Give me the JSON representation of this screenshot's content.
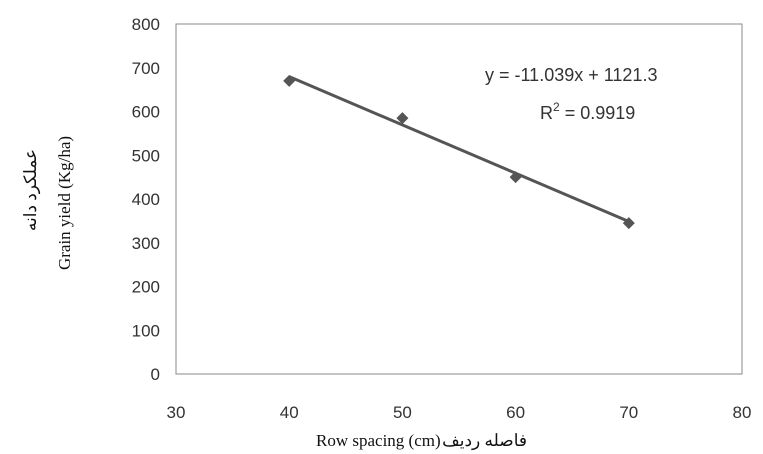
{
  "chart_data": {
    "type": "scatter",
    "series": [
      {
        "x": [
          40,
          50,
          60,
          70
        ],
        "y": [
          670,
          585,
          450,
          345
        ]
      }
    ],
    "trendline": {
      "slope": -11.039,
      "intercept": 1121.3
    },
    "equation": "y = -11.039x + 1121.3",
    "r_squared_prefix": "R",
    "r_squared_exponent": "2",
    "r_squared_value": " = 0.9919",
    "xlabel_fa": "فاصله ردیف",
    "xlabel_en": "Row spacing (cm)",
    "ylabel_en": "Grain yield (Kg/ha)",
    "ylabel_fa": "عملکرد دانه",
    "xlim": [
      30,
      80
    ],
    "ylim": [
      0,
      800
    ],
    "xticks": [
      30,
      40,
      50,
      60,
      70,
      80
    ],
    "yticks": [
      0,
      100,
      200,
      300,
      400,
      500,
      600,
      700,
      800
    ],
    "grid": false,
    "colors": {
      "marker": "#555555",
      "line": "#555555",
      "axes": "#888888"
    }
  }
}
